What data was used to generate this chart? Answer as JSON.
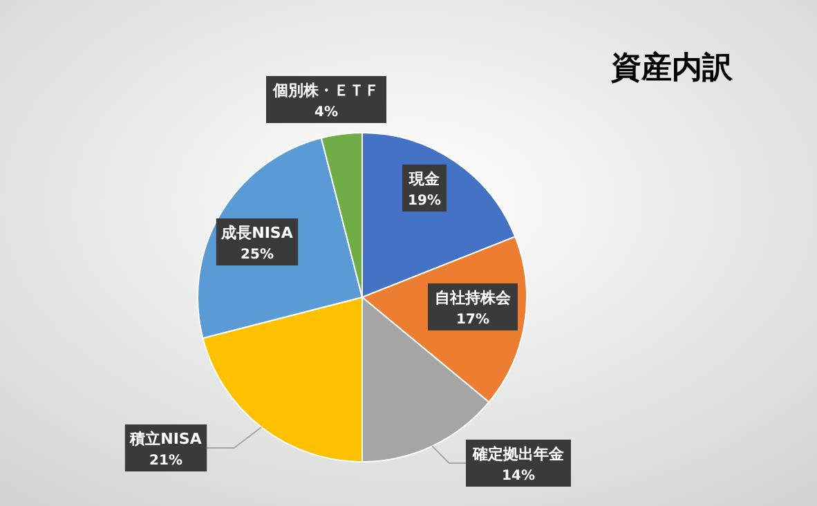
{
  "chart_data": {
    "type": "pie",
    "title": "資産内訳",
    "categories": [
      "現金",
      "自社持株会",
      "確定拠出年金",
      "積立NISA",
      "成長NISA",
      "個別株・ＥＴＦ"
    ],
    "values": [
      19,
      17,
      14,
      21,
      25,
      4
    ],
    "value_labels": [
      "19%",
      "17%",
      "14%",
      "21%",
      "25%",
      "4%"
    ],
    "colors": [
      "#4472c4",
      "#ed7d31",
      "#a5a5a5",
      "#ffc000",
      "#5b9bd5",
      "#70ad47"
    ]
  }
}
